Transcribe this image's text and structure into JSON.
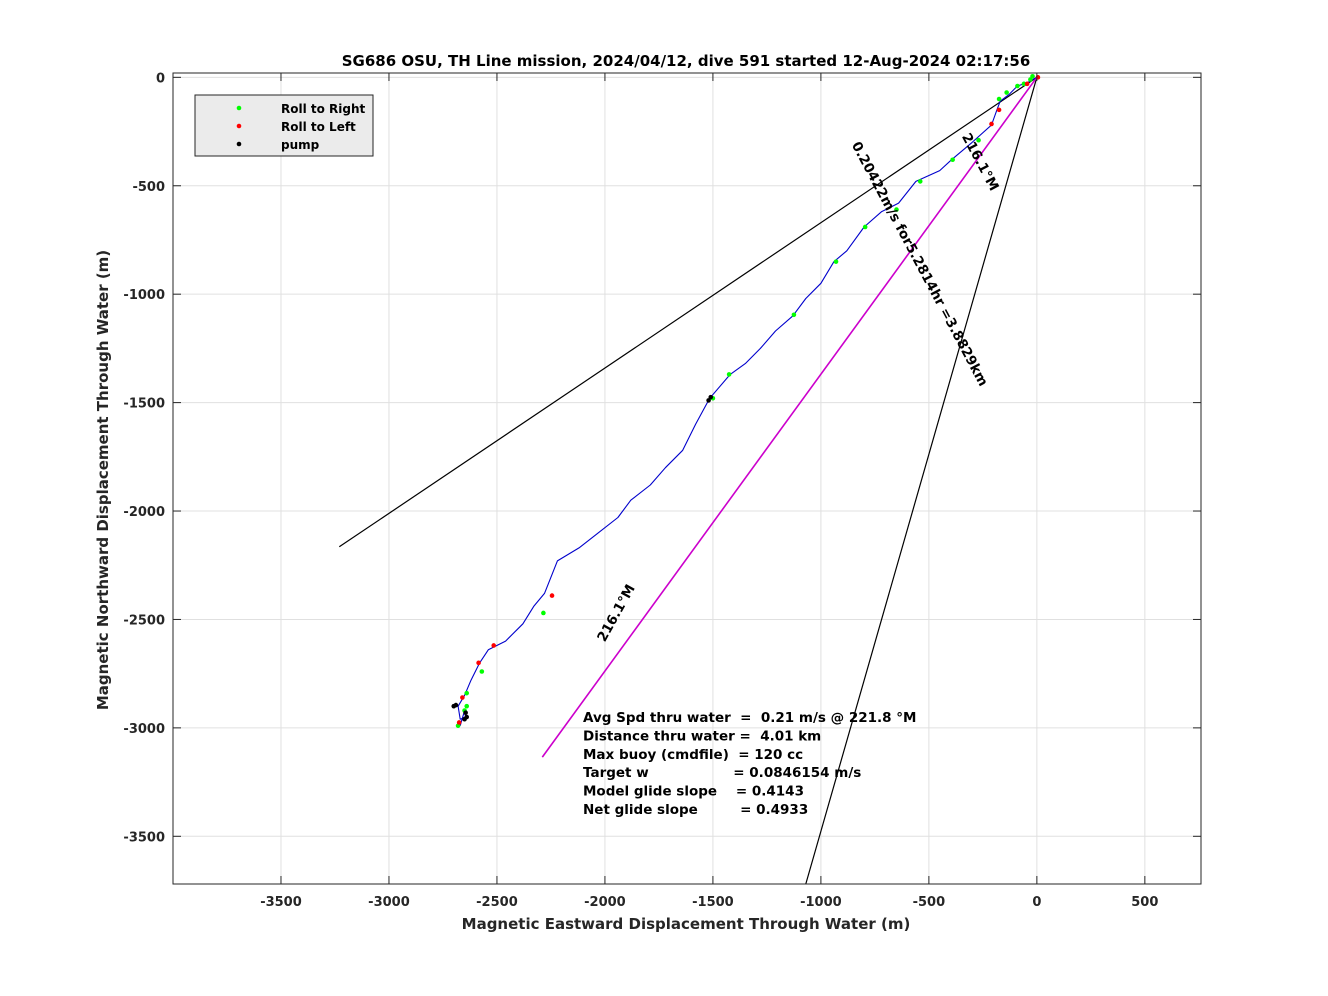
{
  "chart_data": {
    "type": "line",
    "title": "SG686 OSU, TH Line mission, 2024/04/12, dive 591 started 12-Aug-2024 02:17:56",
    "xlabel": "Magnetic Eastward Displacement Through Water (m)",
    "ylabel": "Magnetic Northward Displacement Through Water (m)",
    "xlim": [
      -4000,
      760
    ],
    "ylim": [
      -3720,
      20
    ],
    "xticks": [
      -3500,
      -3000,
      -2500,
      -2000,
      -1500,
      -1000,
      -500,
      0,
      500
    ],
    "yticks": [
      0,
      -500,
      -1000,
      -1500,
      -2000,
      -2500,
      -3000,
      -3500
    ],
    "grid": true,
    "legend_position": "top-left",
    "legend": [
      {
        "label": "Roll to Right",
        "color": "#00ff00"
      },
      {
        "label": "Roll to Left",
        "color": "#ff0000"
      },
      {
        "label": "pump",
        "color": "#000000"
      }
    ],
    "track": {
      "color": "#0000cc",
      "points": [
        [
          0,
          0
        ],
        [
          -10,
          -5
        ],
        [
          -45,
          -25
        ],
        [
          -90,
          -40
        ],
        [
          -130,
          -80
        ],
        [
          -170,
          -110
        ],
        [
          -185,
          -150
        ],
        [
          -210,
          -220
        ],
        [
          -300,
          -300
        ],
        [
          -395,
          -380
        ],
        [
          -450,
          -430
        ],
        [
          -560,
          -480
        ],
        [
          -640,
          -580
        ],
        [
          -720,
          -620
        ],
        [
          -800,
          -690
        ],
        [
          -880,
          -800
        ],
        [
          -940,
          -850
        ],
        [
          -1000,
          -950
        ],
        [
          -1070,
          -1020
        ],
        [
          -1130,
          -1100
        ],
        [
          -1210,
          -1170
        ],
        [
          -1280,
          -1250
        ],
        [
          -1350,
          -1320
        ],
        [
          -1420,
          -1370
        ],
        [
          -1515,
          -1480
        ],
        [
          -1580,
          -1600
        ],
        [
          -1640,
          -1720
        ],
        [
          -1720,
          -1800
        ],
        [
          -1790,
          -1880
        ],
        [
          -1880,
          -1950
        ],
        [
          -1940,
          -2030
        ],
        [
          -2030,
          -2100
        ],
        [
          -2120,
          -2170
        ],
        [
          -2220,
          -2230
        ],
        [
          -2280,
          -2380
        ],
        [
          -2330,
          -2440
        ],
        [
          -2380,
          -2520
        ],
        [
          -2460,
          -2600
        ],
        [
          -2540,
          -2640
        ],
        [
          -2580,
          -2700
        ],
        [
          -2620,
          -2780
        ],
        [
          -2650,
          -2850
        ],
        [
          -2680,
          -2900
        ],
        [
          -2670,
          -2960
        ],
        [
          -2645,
          -2950
        ],
        [
          -2650,
          -2920
        ],
        [
          -2670,
          -2990
        ]
      ]
    },
    "markers": {
      "roll_right": [
        [
          -20,
          5
        ],
        [
          -30,
          -10
        ],
        [
          -60,
          -30
        ],
        [
          -90,
          -40
        ],
        [
          -140,
          -70
        ],
        [
          -175,
          -100
        ],
        [
          -270,
          -290
        ],
        [
          -390,
          -380
        ],
        [
          -540,
          -480
        ],
        [
          -650,
          -610
        ],
        [
          -795,
          -690
        ],
        [
          -930,
          -850
        ],
        [
          -1125,
          -1095
        ],
        [
          -1425,
          -1370
        ],
        [
          -1500,
          -1480
        ],
        [
          -2285,
          -2470
        ],
        [
          -2570,
          -2740
        ],
        [
          -2640,
          -2840
        ],
        [
          -2640,
          -2900
        ],
        [
          -2650,
          -2920
        ],
        [
          -2680,
          -2990
        ]
      ],
      "roll_left": [
        [
          5,
          0
        ],
        [
          -45,
          -30
        ],
        [
          -175,
          -150
        ],
        [
          -210,
          -215
        ],
        [
          -2245,
          -2390
        ],
        [
          -2515,
          -2620
        ],
        [
          -2585,
          -2700
        ],
        [
          -2660,
          -2860
        ],
        [
          -2675,
          -2975
        ]
      ],
      "pump": [
        [
          -1510,
          -1475
        ],
        [
          -1520,
          -1490
        ],
        [
          -2700,
          -2900
        ],
        [
          -2690,
          -2895
        ],
        [
          -2645,
          -2930
        ],
        [
          -2650,
          -2960
        ],
        [
          -2640,
          -2950
        ]
      ]
    },
    "lines": [
      {
        "name": "heading",
        "color": "#000000",
        "from": [
          0,
          0
        ],
        "to": [
          -3230,
          -2165
        ]
      },
      {
        "name": "current",
        "color": "#000000",
        "from": [
          0,
          0
        ],
        "to": [
          -1070,
          -3720
        ]
      },
      {
        "name": "net",
        "color": "#cc00cc",
        "from": [
          0,
          0
        ],
        "to": [
          -2290,
          -3135
        ]
      }
    ],
    "rotated_labels": [
      {
        "text": "216.1°M",
        "at": [
          -280,
          -400
        ],
        "angle": 62
      },
      {
        "text": "0.20422m/s for5.2814hr =3.8829km",
        "at": [
          -560,
          -870
        ],
        "angle": 62
      },
      {
        "text": "216.1°M",
        "at": [
          -1930,
          -2480
        ],
        "angle": -61
      }
    ],
    "annotations": [
      "Avg Spd thru water  =  0.21 m/s @ 221.8 °M",
      "Distance thru water =  4.01 km",
      "Max buoy (cmdfile)  = 120 cc",
      "Target w                  = 0.0846154 m/s",
      "Model glide slope    = 0.4143",
      "Net glide slope         = 0.4933"
    ]
  }
}
